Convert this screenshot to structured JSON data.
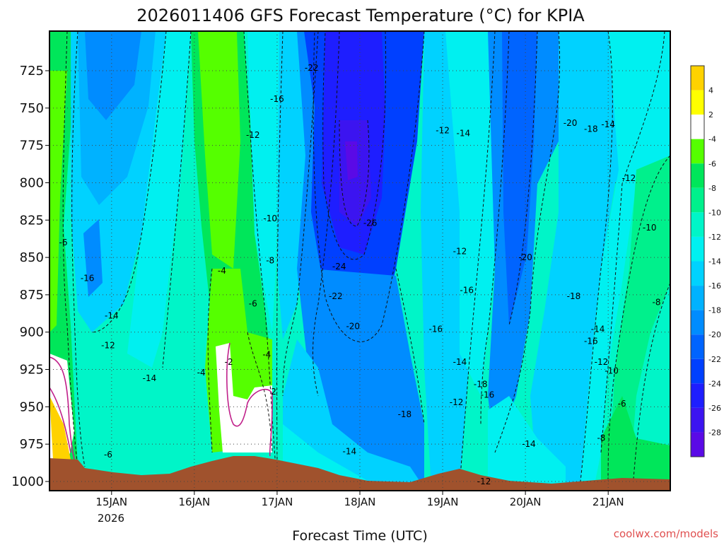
{
  "chart_data": {
    "type": "heatmap",
    "title": "2026011406 GFS Forecast Temperature (°C) for KPIA",
    "xlabel": "Forecast Time (UTC)",
    "ylabel": "",
    "credit": "coolwx.com/models",
    "x_ticks": [
      "15JAN",
      "16JAN",
      "17JAN",
      "18JAN",
      "19JAN",
      "20JAN",
      "21JAN"
    ],
    "x_year_label": "2026",
    "xlim": [
      "2026-01-14T06",
      "2026-01-21T18"
    ],
    "y_ticks": [
      725,
      750,
      775,
      800,
      825,
      850,
      875,
      900,
      925,
      950,
      975,
      1000
    ],
    "ylim": [
      1000,
      700
    ],
    "y_inverted": true,
    "colorbar": {
      "labels": [
        "4",
        "2",
        "-4",
        "-6",
        "-8",
        "-10",
        "-12",
        "-14",
        "-16",
        "-18",
        "-20",
        "-22",
        "-24",
        "-26",
        "-28"
      ],
      "colors": [
        "#ffd200",
        "#ffff00",
        "#ffffff",
        "#55ff00",
        "#00e65a",
        "#00f08c",
        "#00f5c8",
        "#00f0f0",
        "#00d2ff",
        "#00b2ff",
        "#008cff",
        "#0064ff",
        "#0040ff",
        "#1e1eff",
        "#3c14f0",
        "#5a0ae6"
      ]
    },
    "contour_labels": [
      {
        "x": "2026-01-14T10",
        "y": 840,
        "v": "-6"
      },
      {
        "x": "2026-01-14T17",
        "y": 864,
        "v": "-16"
      },
      {
        "x": "2026-01-15T00",
        "y": 889,
        "v": "-14"
      },
      {
        "x": "2026-01-14T23",
        "y": 909,
        "v": "-12"
      },
      {
        "x": "2026-01-15T11",
        "y": 931,
        "v": "-14"
      },
      {
        "x": "2026-01-14T23",
        "y": 982,
        "v": "-6"
      },
      {
        "x": "2026-01-16T02",
        "y": 927,
        "v": "-4"
      },
      {
        "x": "2026-01-16T10",
        "y": 920,
        "v": "-2"
      },
      {
        "x": "2026-01-16T08",
        "y": 859,
        "v": "-4"
      },
      {
        "x": "2026-01-16T17",
        "y": 881,
        "v": "-6"
      },
      {
        "x": "2026-01-16T21",
        "y": 915,
        "v": "-4"
      },
      {
        "x": "2026-01-16T23",
        "y": 940,
        "v": "2"
      },
      {
        "x": "2026-01-16T22",
        "y": 852,
        "v": "-8"
      },
      {
        "x": "2026-01-16T22",
        "y": 824,
        "v": "-10"
      },
      {
        "x": "2026-01-16T17",
        "y": 768,
        "v": "-12"
      },
      {
        "x": "2026-01-17T00",
        "y": 744,
        "v": "-16"
      },
      {
        "x": "2026-01-17T10",
        "y": 723,
        "v": "-22"
      },
      {
        "x": "2026-01-18T03",
        "y": 827,
        "v": "-26"
      },
      {
        "x": "2026-01-17T18",
        "y": 856,
        "v": "-24"
      },
      {
        "x": "2026-01-17T17",
        "y": 876,
        "v": "-22"
      },
      {
        "x": "2026-01-17T22",
        "y": 896,
        "v": "-20"
      },
      {
        "x": "2026-01-18T13",
        "y": 955,
        "v": "-18"
      },
      {
        "x": "2026-01-17T21",
        "y": 980,
        "v": "-14"
      },
      {
        "x": "2026-01-19T00",
        "y": 765,
        "v": "-12"
      },
      {
        "x": "2026-01-19T06",
        "y": 767,
        "v": "-14"
      },
      {
        "x": "2026-01-19T05",
        "y": 846,
        "v": "-12"
      },
      {
        "x": "2026-01-19T07",
        "y": 872,
        "v": "-16"
      },
      {
        "x": "2026-01-18T22",
        "y": 898,
        "v": "-16"
      },
      {
        "x": "2026-01-19T05",
        "y": 920,
        "v": "-14"
      },
      {
        "x": "2026-01-19T04",
        "y": 947,
        "v": "-12"
      },
      {
        "x": "2026-01-19T11",
        "y": 935,
        "v": "-18"
      },
      {
        "x": "2026-01-19T13",
        "y": 942,
        "v": "-16"
      },
      {
        "x": "2026-01-19T12",
        "y": 1000,
        "v": "-12"
      },
      {
        "x": "2026-01-20T00",
        "y": 850,
        "v": "-20"
      },
      {
        "x": "2026-01-20T01",
        "y": 975,
        "v": "-14"
      },
      {
        "x": "2026-01-20T13",
        "y": 760,
        "v": "-20"
      },
      {
        "x": "2026-01-20T19",
        "y": 764,
        "v": "-18"
      },
      {
        "x": "2026-01-21T00",
        "y": 761,
        "v": "-14"
      },
      {
        "x": "2026-01-21T06",
        "y": 797,
        "v": "-12"
      },
      {
        "x": "2026-01-21T12",
        "y": 830,
        "v": "-10"
      },
      {
        "x": "2026-01-20T14",
        "y": 876,
        "v": "-18"
      },
      {
        "x": "2026-01-20T21",
        "y": 898,
        "v": "-14"
      },
      {
        "x": "2026-01-20T19",
        "y": 906,
        "v": "-16"
      },
      {
        "x": "2026-01-20T22",
        "y": 920,
        "v": "-12"
      },
      {
        "x": "2026-01-21T01",
        "y": 926,
        "v": "-10"
      },
      {
        "x": "2026-01-21T04",
        "y": 948,
        "v": "-6"
      },
      {
        "x": "2026-01-20T22",
        "y": 971,
        "v": "-8"
      },
      {
        "x": "2026-01-21T14",
        "y": 880,
        "v": "-8"
      }
    ]
  }
}
